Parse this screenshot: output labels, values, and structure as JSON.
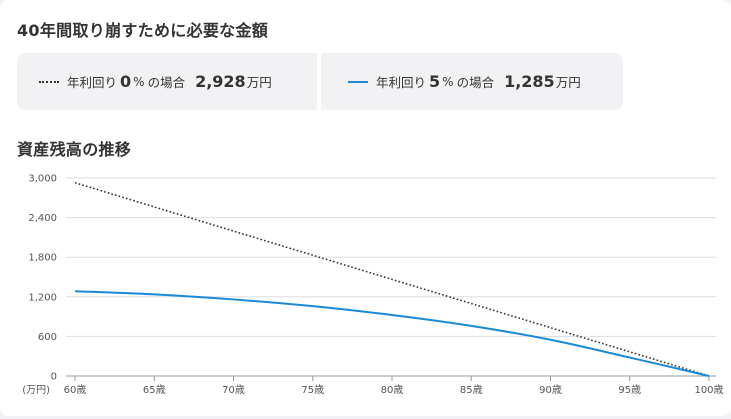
{
  "heading_withdraw": "40年間取り崩すために必要な金額",
  "heading_balance": "資産残高の推移",
  "summary": [
    {
      "label": "年利回り",
      "rate": "0",
      "pct": "%",
      "particle": "の場合",
      "amount": "2,928",
      "unit": "万円"
    },
    {
      "label": "年利回り",
      "rate": "5",
      "pct": "%",
      "particle": "の場合",
      "amount": "1,285",
      "unit": "万円"
    }
  ],
  "colors": {
    "dotted_series": "#333333",
    "solid_series": "#1a8ad7",
    "grid": "#dddddd"
  },
  "chart_data": {
    "type": "line",
    "title": "資産残高の推移",
    "ylabel": "(万円)",
    "xlabel": "",
    "x": [
      60,
      65,
      70,
      75,
      80,
      85,
      90,
      95,
      100
    ],
    "xtick_labels": [
      "60歳",
      "65歳",
      "70歳",
      "75歳",
      "80歳",
      "85歳",
      "90歳",
      "95歳",
      "100歳"
    ],
    "yticks": [
      0,
      600,
      1200,
      1800,
      2400,
      3000
    ],
    "ytick_labels": [
      "0",
      "600",
      "1,200",
      "1,800",
      "2,400",
      "3,000"
    ],
    "ylim": [
      0,
      3000
    ],
    "xlim": [
      60,
      100
    ],
    "grid": true,
    "series": [
      {
        "name": "年利回り0%",
        "style": "dotted",
        "values": [
          2928,
          2562,
          2196,
          1830,
          1464,
          1098,
          732,
          366,
          0
        ]
      },
      {
        "name": "年利回り5%",
        "style": "solid",
        "values": [
          1285,
          1237,
          1160,
          1058,
          925,
          760,
          549,
          280,
          0
        ]
      }
    ]
  }
}
